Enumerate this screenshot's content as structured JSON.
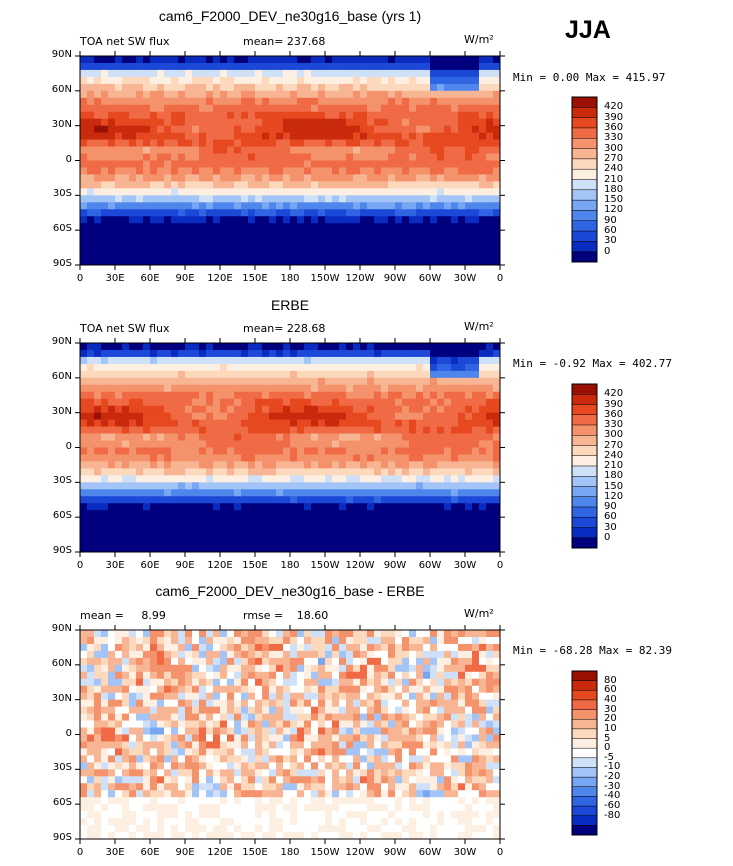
{
  "season": "JJA",
  "colors": {
    "abs_scale": [
      "#00007f",
      "#0a2bbf",
      "#1b48d6",
      "#2f64e2",
      "#4f86ec",
      "#77a6f2",
      "#a3c4f6",
      "#cfe1f8",
      "#fdf0e2",
      "#fcd8bd",
      "#f8b593",
      "#f4926b",
      "#f06b45",
      "#e6481f",
      "#c92a0c",
      "#9a1002"
    ],
    "diff_scale": [
      "#00007f",
      "#0a2bbf",
      "#1b48d6",
      "#2f64e2",
      "#4f86ec",
      "#77a6f2",
      "#a3c4f6",
      "#cfe1f8",
      "#ffffff",
      "#fdf0e2",
      "#fcd8bd",
      "#f8b593",
      "#f4926b",
      "#f06b45",
      "#e6481f",
      "#c92a0c",
      "#9a1002"
    ]
  },
  "chart_data": [
    {
      "type": "heatmap",
      "title": "cam6_F2000_DEV_ne30g16_base (yrs 1)",
      "left_label": "TOA net SW flux",
      "units": "W/m²",
      "mean_label": "mean=",
      "mean_value": "237.68",
      "min_text": "Min =    0.00 Max = 415.97",
      "min": 0.0,
      "max": 415.97,
      "levels": [
        "0",
        "30",
        "60",
        "90",
        "120",
        "150",
        "180",
        "210",
        "240",
        "270",
        "300",
        "330",
        "360",
        "390",
        "420"
      ],
      "x_ticks": [
        "0",
        "30E",
        "60E",
        "90E",
        "120E",
        "150E",
        "180",
        "150W",
        "120W",
        "90W",
        "60W",
        "30W",
        "0"
      ],
      "y_ticks": [
        "90N",
        "60N",
        "30N",
        "0",
        "30S",
        "60S",
        "90S"
      ]
    },
    {
      "type": "heatmap",
      "title": "ERBE",
      "left_label": "TOA net SW flux",
      "units": "W/m²",
      "mean_label": "mean=",
      "mean_value": "228.68",
      "min_text": "Min =  -0.92 Max = 402.77",
      "min": -0.92,
      "max": 402.77,
      "levels": [
        "0",
        "30",
        "60",
        "90",
        "120",
        "150",
        "180",
        "210",
        "240",
        "270",
        "300",
        "330",
        "360",
        "390",
        "420"
      ],
      "x_ticks": [
        "0",
        "30E",
        "60E",
        "90E",
        "120E",
        "150E",
        "180",
        "150W",
        "120W",
        "90W",
        "60W",
        "30W",
        "0"
      ],
      "y_ticks": [
        "90N",
        "60N",
        "30N",
        "0",
        "30S",
        "60S",
        "90S"
      ]
    },
    {
      "type": "heatmap",
      "title": "cam6_F2000_DEV_ne30g16_base - ERBE",
      "mean_label": "mean =",
      "mean_value": "8.99",
      "rmse_label": "rmse =",
      "rmse_value": "18.60",
      "units": "W/m²",
      "min_text": "Min = -68.28 Max =  82.39",
      "min": -68.28,
      "max": 82.39,
      "levels": [
        "-80",
        "-60",
        "-40",
        "-30",
        "-20",
        "-10",
        "-5",
        "0",
        "5",
        "10",
        "20",
        "30",
        "40",
        "60",
        "80"
      ],
      "x_ticks": [
        "0",
        "30E",
        "60E",
        "90E",
        "120E",
        "150E",
        "180",
        "150W",
        "120W",
        "90W",
        "60W",
        "30W",
        "0"
      ],
      "y_ticks": [
        "90N",
        "60N",
        "30N",
        "0",
        "30S",
        "60S",
        "90S"
      ]
    }
  ]
}
